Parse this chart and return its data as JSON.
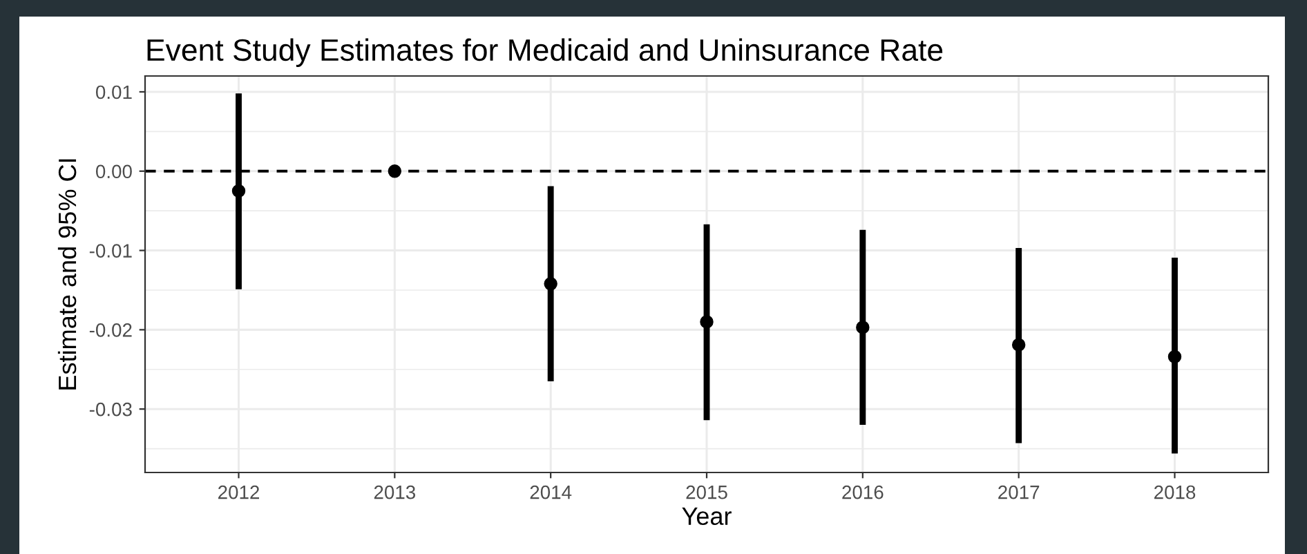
{
  "chart_data": {
    "type": "scatter",
    "title": "Event Study Estimates for Medicaid and Uninsurance Rate",
    "xlabel": "Year",
    "ylabel": "Estimate and 95% CI",
    "categories": [
      "2012",
      "2013",
      "2014",
      "2015",
      "2016",
      "2017",
      "2018"
    ],
    "series": [
      {
        "color": "#000000",
        "values": [
          -0.0025,
          0,
          -0.0142,
          -0.019,
          -0.0197,
          -0.0219,
          -0.0234
        ],
        "errors": [
          [
            -0.0149,
            0.0098
          ],
          null,
          [
            -0.0265,
            -0.0019
          ],
          [
            -0.0314,
            -0.0067
          ],
          [
            -0.032,
            -0.0074
          ],
          [
            -0.0343,
            -0.0097
          ],
          [
            -0.0356,
            -0.0109
          ]
        ]
      }
    ],
    "ylim": [
      -0.038,
      0.012
    ],
    "yticks": [
      {
        "value": -0.03,
        "label": "-0.03"
      },
      {
        "value": -0.02,
        "label": "-0.02"
      },
      {
        "value": -0.01,
        "label": "-0.01"
      },
      {
        "value": 0,
        "label": "0.00"
      },
      {
        "value": 0.01,
        "label": "0.01"
      }
    ],
    "ref_lines": [
      {
        "axis": "y",
        "value": 0,
        "color": "#000000",
        "line_style": "dashed"
      }
    ],
    "grid": true,
    "marker": "circle"
  }
}
